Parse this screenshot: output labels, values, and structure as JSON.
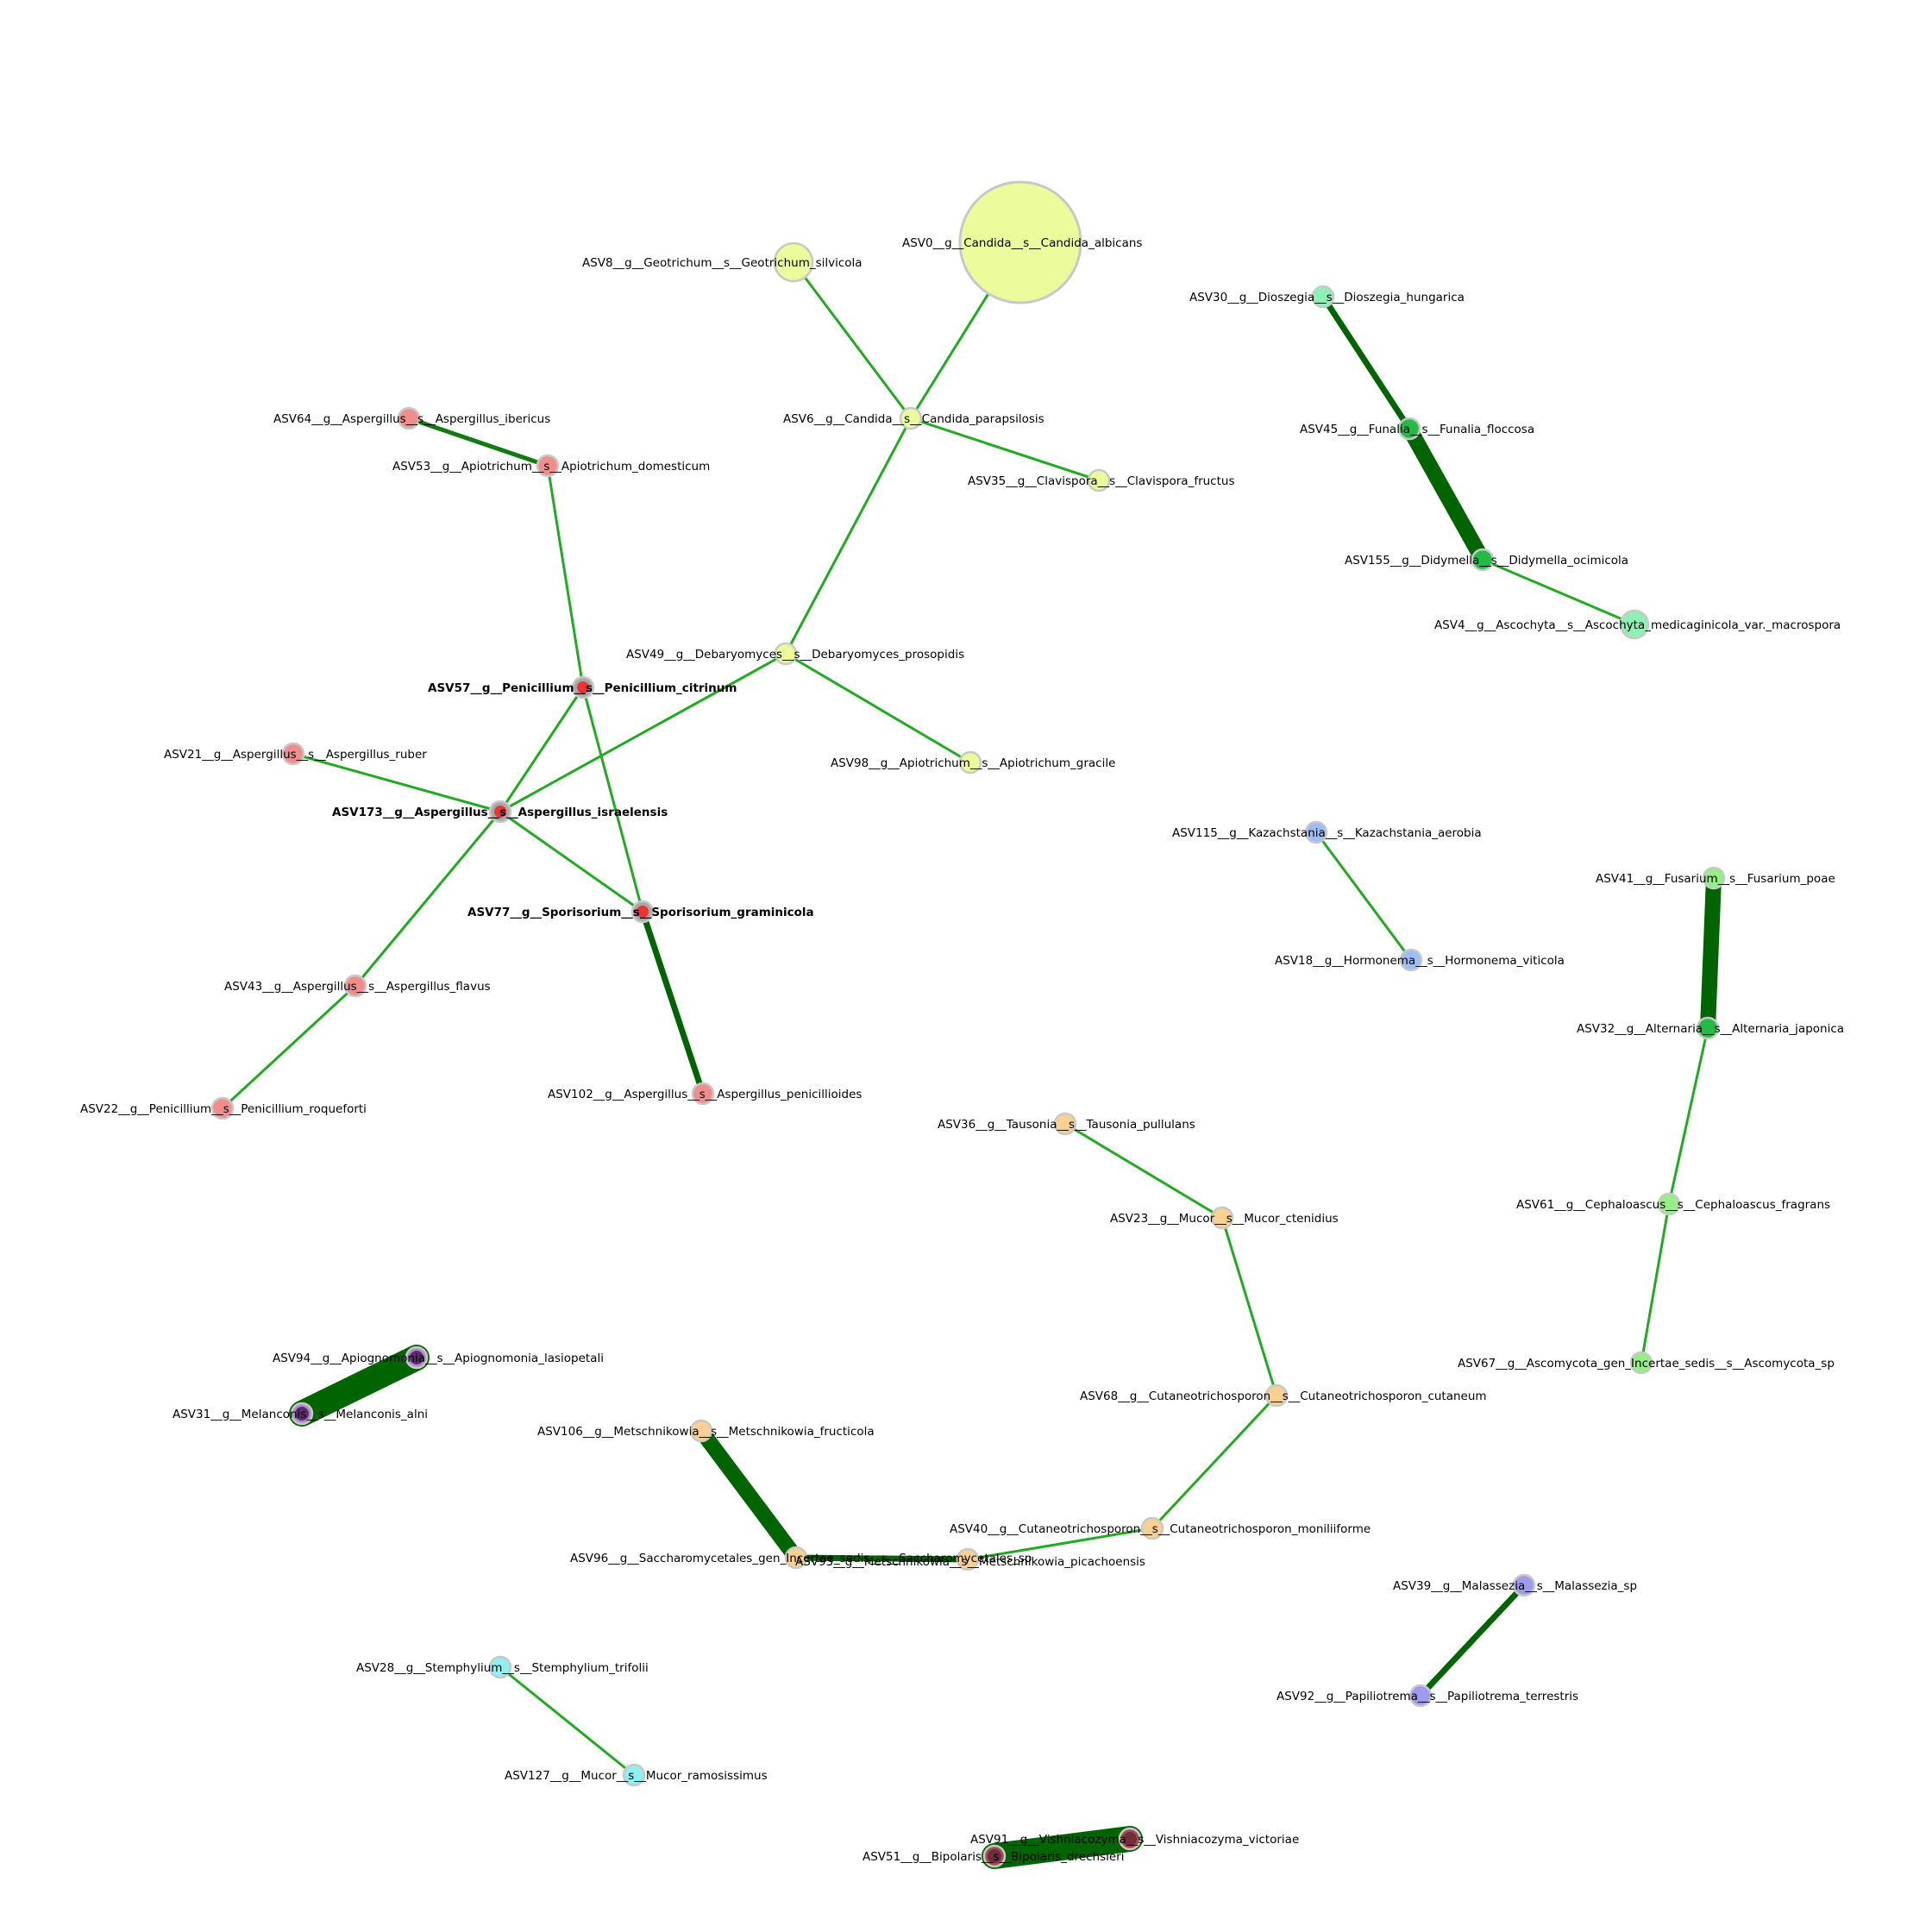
{
  "network": {
    "palette": {
      "candida_group": "#ecfc9c",
      "penicillium_group": "#f28d8d",
      "hub_node": "#a8a8a8",
      "hub_center": "#ee3333",
      "dioszegia_group": "#8ef0b4",
      "funalia_group": "#22bb44",
      "kazachstania_group": "#9dbdf5",
      "fusarium_group": "#96ee86",
      "mucor_group": "#f9d093",
      "melanconis_group": "#b28cc9",
      "melanconis_dark": "#5a2d6e",
      "stemphylium_group": "#8ef0f0",
      "malassezia_group": "#a09aee",
      "vishniacozyma_group": "#9e4d55",
      "vishniacozyma_dark": "#6e2f3a",
      "node_outline": "#c8c8c8",
      "edge_light": "#22aa22",
      "edge_dark": "#006400"
    },
    "nodes": [
      {
        "id": "ASV0",
        "label": "ASV0__g__Candida__s__Candida_albicans",
        "color": "#ecfc9c",
        "size": "xl"
      },
      {
        "id": "ASV8",
        "label": "ASV8__g__Geotrichum__s__Geotrichum_silvicola",
        "color": "#ecfc9c",
        "size": "m"
      },
      {
        "id": "ASV6",
        "label": "ASV6__g__Candida__s__Candida_parapsilosis",
        "color": "#ecfc9c",
        "size": "s"
      },
      {
        "id": "ASV35",
        "label": "ASV35__g__Clavispora__s__Clavispora_fructus",
        "color": "#ecfc9c",
        "size": "s"
      },
      {
        "id": "ASV49",
        "label": "ASV49__g__Debaryomyces__s__Debaryomyces_prosopidis",
        "color": "#ecfc9c",
        "size": "s"
      },
      {
        "id": "ASV98",
        "label": "ASV98__g__Apiotrichum__s__Apiotrichum_gracile",
        "color": "#ecfc9c",
        "size": "s"
      },
      {
        "id": "ASV64",
        "label": "ASV64__g__Aspergillus__s__Aspergillus_ibericus",
        "color": "#f28d8d",
        "size": "s"
      },
      {
        "id": "ASV53",
        "label": "ASV53__g__Apiotrichum__s__Apiotrichum_domesticum",
        "color": "#f28d8d",
        "size": "s"
      },
      {
        "id": "ASV57",
        "label": "ASV57__g__Penicillium__s__Penicillium_citrinum",
        "color": "#a8a8a8",
        "size": "s",
        "hub": true
      },
      {
        "id": "ASV21",
        "label": "ASV21__g__Aspergillus__s__Aspergillus_ruber",
        "color": "#f28d8d",
        "size": "s"
      },
      {
        "id": "ASV173",
        "label": "ASV173__g__Aspergillus__s__Aspergillus_israelensis",
        "color": "#a8a8a8",
        "size": "s",
        "hub": true
      },
      {
        "id": "ASV77",
        "label": "ASV77__g__Sporisorium__s__Sporisorium_graminicola",
        "color": "#a8a8a8",
        "size": "s",
        "hub": true
      },
      {
        "id": "ASV43",
        "label": "ASV43__g__Aspergillus__s__Aspergillus_flavus",
        "color": "#f28d8d",
        "size": "s"
      },
      {
        "id": "ASV22",
        "label": "ASV22__g__Penicillium__s__Penicillium_roqueforti",
        "color": "#f28d8d",
        "size": "s"
      },
      {
        "id": "ASV102",
        "label": "ASV102__g__Aspergillus__s__Aspergillus_penicillioides",
        "color": "#f28d8d",
        "size": "s"
      },
      {
        "id": "ASV30",
        "label": "ASV30__g__Dioszegia__s__Dioszegia_hungarica",
        "color": "#8ef0b4",
        "size": "s"
      },
      {
        "id": "ASV45",
        "label": "ASV45__g__Funalia__s__Funalia_floccosa",
        "color": "#22bb44",
        "size": "s"
      },
      {
        "id": "ASV155",
        "label": "ASV155__g__Didymella__s__Didymella_ocimicola",
        "color": "#22bb44",
        "size": "s"
      },
      {
        "id": "ASV4",
        "label": "ASV4__g__Ascochyta__s__Ascochyta_medicaginicola_var._macrospora",
        "color": "#8ef0b4",
        "size": "m2"
      },
      {
        "id": "ASV115",
        "label": "ASV115__g__Kazachstania__s__Kazachstania_aerobia",
        "color": "#9dbdf5",
        "size": "s"
      },
      {
        "id": "ASV18",
        "label": "ASV18__g__Hormonema__s__Hormonema_viticola",
        "color": "#9dbdf5",
        "size": "s"
      },
      {
        "id": "ASV41",
        "label": "ASV41__g__Fusarium__s__Fusarium_poae",
        "color": "#96ee86",
        "size": "s"
      },
      {
        "id": "ASV32",
        "label": "ASV32__g__Alternaria__s__Alternaria_japonica",
        "color": "#22bb44",
        "size": "s"
      },
      {
        "id": "ASV61",
        "label": "ASV61__g__Cephaloascus__s__Cephaloascus_fragrans",
        "color": "#96ee86",
        "size": "s"
      },
      {
        "id": "ASV67",
        "label": "ASV67__g__Ascomycota_gen_Incertae_sedis__s__Ascomycota_sp",
        "color": "#96ee86",
        "size": "s"
      },
      {
        "id": "ASV36",
        "label": "ASV36__g__Tausonia__s__Tausonia_pullulans",
        "color": "#f9d093",
        "size": "s"
      },
      {
        "id": "ASV23",
        "label": "ASV23__g__Mucor__s__Mucor_ctenidius",
        "color": "#f9d093",
        "size": "s"
      },
      {
        "id": "ASV68",
        "label": "ASV68__g__Cutaneotrichosporon__s__Cutaneotrichosporon_cutaneum",
        "color": "#f9d093",
        "size": "s"
      },
      {
        "id": "ASV40",
        "label": "ASV40__g__Cutaneotrichosporon__s__Cutaneotrichosporon_moniliiforme",
        "color": "#f9d093",
        "size": "s"
      },
      {
        "id": "ASV106",
        "label": "ASV106__g__Metschnikowia__s__Metschnikowia_fructicola",
        "color": "#f9d093",
        "size": "s"
      },
      {
        "id": "ASV96",
        "label": "ASV96__g__Saccharomycetales_gen_Incertae_sedis__s__Saccharomycetales_sp",
        "color": "#f9d093",
        "size": "s"
      },
      {
        "id": "ASV93",
        "label": "ASV93__g__Metschnikowia__s__Metschnikowia_picachoensis",
        "color": "#f9d093",
        "size": "s"
      },
      {
        "id": "ASV94",
        "label": "ASV94__g__Apiognomonia__s__Apiognomonia_lasiopetali",
        "color": "#b28cc9",
        "size": "s",
        "dark": "#5a2d6e"
      },
      {
        "id": "ASV31",
        "label": "ASV31__g__Melanconis__s__Melanconis_alni",
        "color": "#b28cc9",
        "size": "s",
        "dark": "#5a2d6e"
      },
      {
        "id": "ASV28",
        "label": "ASV28__g__Stemphylium__s__Stemphylium_trifolii",
        "color": "#8ef0f0",
        "size": "s"
      },
      {
        "id": "ASV127",
        "label": "ASV127__g__Mucor__s__Mucor_ramosissimus",
        "color": "#8ef0f0",
        "size": "s"
      },
      {
        "id": "ASV39",
        "label": "ASV39__g__Malassezia__s__Malassezia_sp",
        "color": "#a09aee",
        "size": "s"
      },
      {
        "id": "ASV92",
        "label": "ASV92__g__Papiliotrema__s__Papiliotrema_terrestris",
        "color": "#a09aee",
        "size": "s"
      },
      {
        "id": "ASV91",
        "label": "ASV91__g__Vishniacozyma__s__Vishniacozyma_victoriae",
        "color": "#9e4d55",
        "size": "s",
        "dark": "#6e2f3a"
      },
      {
        "id": "ASV51",
        "label": "ASV51__g__Bipolaris__s__Bipolaris_drechsleri",
        "color": "#9e4d55",
        "size": "s",
        "dark": "#6e2f3a"
      }
    ],
    "edges": [
      {
        "source": "ASV0",
        "target": "ASV6",
        "strength": "light"
      },
      {
        "source": "ASV8",
        "target": "ASV6",
        "strength": "light"
      },
      {
        "source": "ASV6",
        "target": "ASV35",
        "strength": "light"
      },
      {
        "source": "ASV6",
        "target": "ASV49",
        "strength": "light"
      },
      {
        "source": "ASV49",
        "target": "ASV98",
        "strength": "light"
      },
      {
        "source": "ASV49",
        "target": "ASV173",
        "strength": "light"
      },
      {
        "source": "ASV64",
        "target": "ASV53",
        "strength": "medium"
      },
      {
        "source": "ASV53",
        "target": "ASV57",
        "strength": "light"
      },
      {
        "source": "ASV57",
        "target": "ASV173",
        "strength": "light"
      },
      {
        "source": "ASV57",
        "target": "ASV77",
        "strength": "light"
      },
      {
        "source": "ASV21",
        "target": "ASV173",
        "strength": "light"
      },
      {
        "source": "ASV173",
        "target": "ASV77",
        "strength": "light"
      },
      {
        "source": "ASV173",
        "target": "ASV43",
        "strength": "light"
      },
      {
        "source": "ASV43",
        "target": "ASV22",
        "strength": "light"
      },
      {
        "source": "ASV77",
        "target": "ASV102",
        "strength": "heavy"
      },
      {
        "source": "ASV30",
        "target": "ASV45",
        "strength": "heavy"
      },
      {
        "source": "ASV45",
        "target": "ASV155",
        "strength": "very-heavy"
      },
      {
        "source": "ASV155",
        "target": "ASV4",
        "strength": "light"
      },
      {
        "source": "ASV115",
        "target": "ASV18",
        "strength": "light"
      },
      {
        "source": "ASV41",
        "target": "ASV32",
        "strength": "very-heavy"
      },
      {
        "source": "ASV32",
        "target": "ASV61",
        "strength": "light"
      },
      {
        "source": "ASV61",
        "target": "ASV67",
        "strength": "light"
      },
      {
        "source": "ASV36",
        "target": "ASV23",
        "strength": "light"
      },
      {
        "source": "ASV23",
        "target": "ASV68",
        "strength": "light"
      },
      {
        "source": "ASV68",
        "target": "ASV40",
        "strength": "light"
      },
      {
        "source": "ASV40",
        "target": "ASV93",
        "strength": "light"
      },
      {
        "source": "ASV93",
        "target": "ASV96",
        "strength": "heavy"
      },
      {
        "source": "ASV106",
        "target": "ASV96",
        "strength": "very-heavy"
      },
      {
        "source": "ASV94",
        "target": "ASV31",
        "strength": "huge"
      },
      {
        "source": "ASV28",
        "target": "ASV127",
        "strength": "light"
      },
      {
        "source": "ASV39",
        "target": "ASV92",
        "strength": "heavy"
      },
      {
        "source": "ASV91",
        "target": "ASV51",
        "strength": "huge"
      }
    ]
  }
}
